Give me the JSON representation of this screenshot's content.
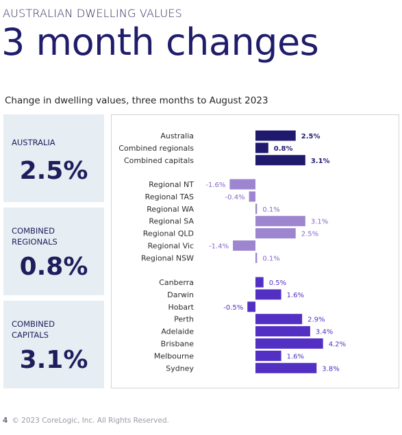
{
  "header": {
    "kicker": "AUSTRALIAN DWELLING VALUES",
    "title": "3 month changes",
    "subtitle": "Change in dwelling values, three months to August 2023"
  },
  "cards": [
    {
      "label": "AUSTRALIA",
      "value": "2.5%"
    },
    {
      "label": "COMBINED\nREGIONALS",
      "value": "0.8%"
    },
    {
      "label": "COMBINED\nCAPITALS",
      "value": "3.1%"
    }
  ],
  "footer": {
    "page": "4",
    "copyright": "© 2023 CoreLogic, Inc. All Rights Reserved."
  },
  "colors": {
    "navy": "#1f1a6e",
    "lavender": "#9d86cf",
    "purple": "#5330c4",
    "label_navy": "#1f1a6e",
    "label_lavender": "#8468c7",
    "label_purple": "#5330c4"
  },
  "chart_data": {
    "type": "bar",
    "orientation": "horizontal",
    "title": "Change in dwelling values, three months to August 2023",
    "groups": [
      {
        "color": "navy",
        "categories": [
          "Australia",
          "Combined regionals",
          "Combined capitals"
        ],
        "values": [
          2.5,
          0.8,
          3.1
        ],
        "labels": [
          "2.5%",
          "0.8%",
          "3.1%"
        ]
      },
      {
        "color": "lavender",
        "categories": [
          "Regional NT",
          "Regional TAS",
          "Regional WA",
          "Regional SA",
          "Regional QLD",
          "Regional Vic",
          "Regional NSW"
        ],
        "values": [
          -1.6,
          -0.4,
          0.1,
          3.1,
          2.5,
          -1.4,
          0.1
        ],
        "labels": [
          "-1.6%",
          "-0.4%",
          "0.1%",
          "3.1%",
          "2.5%",
          "-1.4%",
          "0.1%"
        ]
      },
      {
        "color": "purple",
        "categories": [
          "Canberra",
          "Darwin",
          "Hobart",
          "Perth",
          "Adelaide",
          "Brisbane",
          "Melbourne",
          "Sydney"
        ],
        "values": [
          0.5,
          1.6,
          -0.5,
          2.9,
          3.4,
          4.2,
          1.6,
          3.8
        ],
        "labels": [
          "0.5%",
          "1.6%",
          "-0.5%",
          "2.9%",
          "3.4%",
          "4.2%",
          "1.6%",
          "3.8%"
        ]
      }
    ],
    "grid": false,
    "legend": "none"
  }
}
